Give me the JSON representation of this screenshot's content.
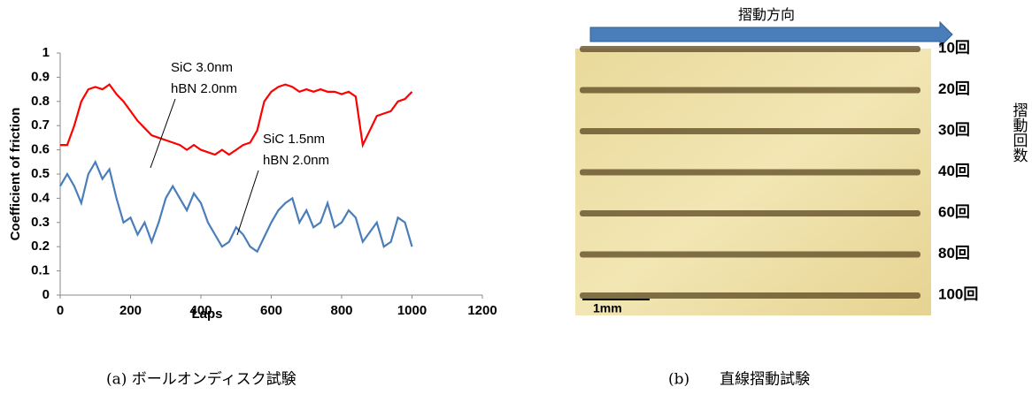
{
  "chart_data": {
    "type": "line",
    "x_label": "Laps",
    "y_label": "Coefficient of friction",
    "xlim": [
      0,
      1200
    ],
    "xticks": [
      0,
      200,
      400,
      600,
      800,
      1000,
      1200
    ],
    "ylim": [
      0,
      1
    ],
    "yticks": [
      0,
      0.1,
      0.2,
      0.3,
      0.4,
      0.5,
      0.6,
      0.7,
      0.8,
      0.9,
      1
    ],
    "x": [
      0,
      20,
      40,
      60,
      80,
      100,
      120,
      140,
      160,
      180,
      200,
      220,
      240,
      260,
      280,
      300,
      320,
      340,
      360,
      380,
      400,
      420,
      440,
      460,
      480,
      500,
      520,
      540,
      560,
      580,
      600,
      620,
      640,
      660,
      680,
      700,
      720,
      740,
      760,
      780,
      800,
      820,
      840,
      860,
      880,
      900,
      920,
      940,
      960,
      980,
      1000
    ],
    "series": [
      {
        "color": "#ff0000",
        "values": [
          0.62,
          0.62,
          0.7,
          0.8,
          0.85,
          0.86,
          0.85,
          0.87,
          0.83,
          0.8,
          0.76,
          0.72,
          0.69,
          0.66,
          0.65,
          0.64,
          0.63,
          0.62,
          0.6,
          0.62,
          0.6,
          0.59,
          0.58,
          0.6,
          0.58,
          0.6,
          0.62,
          0.63,
          0.68,
          0.8,
          0.84,
          0.86,
          0.87,
          0.86,
          0.84,
          0.85,
          0.84,
          0.85,
          0.84,
          0.84,
          0.83,
          0.84,
          0.82,
          0.62,
          0.68,
          0.74,
          0.75,
          0.76,
          0.8,
          0.81,
          0.84
        ]
      },
      {
        "color": "#4a7ebb",
        "values": [
          0.45,
          0.5,
          0.45,
          0.38,
          0.5,
          0.55,
          0.48,
          0.52,
          0.4,
          0.3,
          0.32,
          0.25,
          0.3,
          0.22,
          0.3,
          0.4,
          0.45,
          0.4,
          0.35,
          0.42,
          0.38,
          0.3,
          0.25,
          0.2,
          0.22,
          0.28,
          0.25,
          0.2,
          0.18,
          0.24,
          0.3,
          0.35,
          0.38,
          0.4,
          0.3,
          0.35,
          0.28,
          0.3,
          0.38,
          0.28,
          0.3,
          0.35,
          0.32,
          0.22,
          0.26,
          0.3,
          0.2,
          0.22,
          0.32,
          0.3,
          0.2
        ]
      }
    ],
    "annotations": [
      {
        "lines": [
          "SiC  3.0nm",
          "hBN 2.0nm"
        ]
      },
      {
        "lines": [
          "SiC  1.5nm",
          "hBN 2.0nm"
        ]
      }
    ]
  },
  "image_panel": {
    "direction": "摺動方向",
    "scale": "1mm",
    "rows": [
      "10回",
      "20回",
      "30回",
      "40回",
      "60回",
      "80回",
      "100回"
    ],
    "axis_label": "摺動回数"
  },
  "captions": [
    "(a)  ボールオンディスク試験",
    "(b)　　直線摺動試験"
  ]
}
